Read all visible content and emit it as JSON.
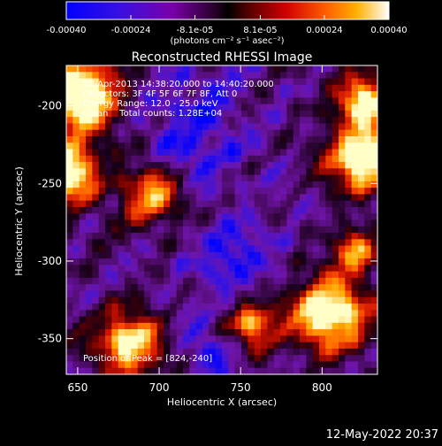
{
  "colorbar": {
    "tick_labels": [
      "-0.00040",
      "-0.00024",
      "-8.1e-05",
      "8.1e-05",
      "0.00024",
      "0.00040"
    ],
    "tick_values": [
      -0.0004,
      -0.00024,
      -8.1e-05,
      8.1e-05,
      0.00024,
      0.0004
    ],
    "range": [
      -0.0004,
      0.0004
    ],
    "unit_label": "(photons cm⁻² s⁻¹ asec⁻²)",
    "colors": [
      "#0000ff",
      "#5a00c8",
      "#8a0090",
      "#000000",
      "#8a0000",
      "#ff2000",
      "#ff9000",
      "#ffffff"
    ]
  },
  "chart_data": {
    "type": "heatmap",
    "title": "Reconstructed RHESSI Image",
    "xlabel": "Heliocentric X (arcsec)",
    "ylabel": "Heliocentric Y (arcsec)",
    "xlim": [
      643,
      834
    ],
    "ylim": [
      -373,
      -174
    ],
    "x_ticks": [
      650,
      700,
      750,
      800
    ],
    "y_ticks": [
      -200,
      -250,
      -300,
      -350
    ],
    "x_tick_labels": [
      "650",
      "700",
      "750",
      "800"
    ],
    "y_tick_labels": [
      "-200",
      "-250",
      "-300",
      "-350"
    ],
    "annotations": [
      "18-Apr-2013 14:38:20.000 to 14:40:20.000",
      "Detectors: 3F 4F 5F 6F 7F 8F, Att 0",
      "Energy Range: 12.0 - 25.0 keV",
      "Clean    Total counts: 1.28E+04"
    ],
    "peak_text": "Position of Peak = [824,-240]",
    "peak_position": [
      824,
      -240
    ]
  },
  "footer": {
    "timestamp": "12-May-2022 20:37"
  }
}
